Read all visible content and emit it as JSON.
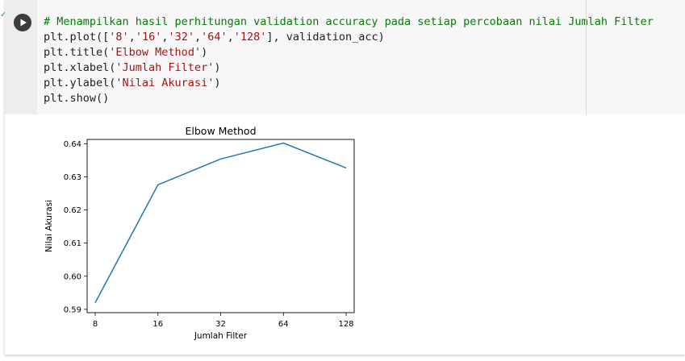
{
  "cell": {
    "status": "✓",
    "code_lines": [
      {
        "segments": [
          {
            "text": "# Menampilkan hasil perhitungan validation accuracy pada setiap percobaan nilai Jumlah Filter",
            "cls": "cmt"
          }
        ]
      },
      {
        "segments": [
          {
            "text": "plt.plot([",
            "cls": ""
          },
          {
            "text": "'8'",
            "cls": "str"
          },
          {
            "text": ",",
            "cls": ""
          },
          {
            "text": "'16'",
            "cls": "str"
          },
          {
            "text": ",",
            "cls": ""
          },
          {
            "text": "'32'",
            "cls": "str"
          },
          {
            "text": ",",
            "cls": ""
          },
          {
            "text": "'64'",
            "cls": "str"
          },
          {
            "text": ",",
            "cls": ""
          },
          {
            "text": "'128'",
            "cls": "str"
          },
          {
            "text": "], validation_acc)",
            "cls": ""
          }
        ]
      },
      {
        "segments": [
          {
            "text": "plt.title(",
            "cls": ""
          },
          {
            "text": "'Elbow Method'",
            "cls": "str"
          },
          {
            "text": ")",
            "cls": ""
          }
        ]
      },
      {
        "segments": [
          {
            "text": "plt.xlabel(",
            "cls": ""
          },
          {
            "text": "'Jumlah Filter'",
            "cls": "str"
          },
          {
            "text": ")",
            "cls": ""
          }
        ]
      },
      {
        "segments": [
          {
            "text": "plt.ylabel(",
            "cls": ""
          },
          {
            "text": "'Nilai Akurasi'",
            "cls": "str"
          },
          {
            "text": ")",
            "cls": ""
          }
        ]
      },
      {
        "segments": [
          {
            "text": "plt.show()",
            "cls": ""
          }
        ]
      }
    ]
  },
  "icons": {
    "run": "play-icon",
    "status": "check-icon"
  },
  "colors": {
    "line": "#1f77b4",
    "comment": "#0a7a0a",
    "string": "#a31515",
    "status_ok": "#2e9d3a"
  },
  "chart_data": {
    "type": "line",
    "title": "Elbow Method",
    "xlabel": "Jumlah Filter",
    "ylabel": "Nilai Akurasi",
    "categories": [
      "8",
      "16",
      "32",
      "64",
      "128"
    ],
    "series": [
      {
        "values": [
          0.592,
          0.6276,
          0.6354,
          0.6402,
          0.6327
        ]
      }
    ],
    "ylim": [
      0.589,
      0.6413
    ],
    "yticks": [
      "0.59",
      "0.60",
      "0.61",
      "0.62",
      "0.63",
      "0.64"
    ],
    "ytick_values": [
      0.59,
      0.6,
      0.61,
      0.62,
      0.63,
      0.64
    ],
    "grid": false,
    "legend": "none"
  }
}
